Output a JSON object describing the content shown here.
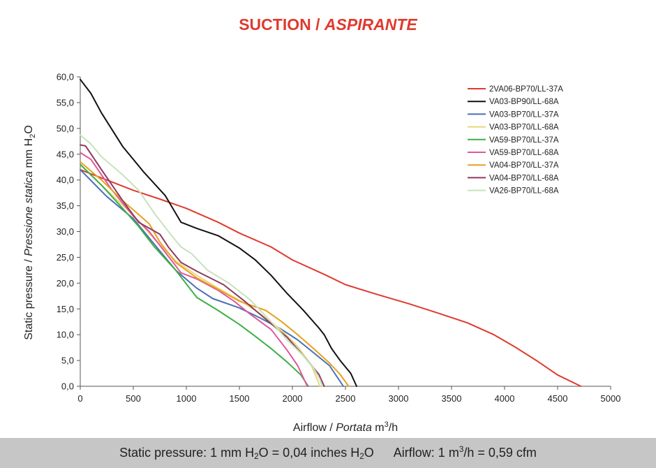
{
  "header": {
    "title_main": "SUCTION /",
    "title_italic": "ASPIRANTE"
  },
  "footer": {
    "pressure_text": "Static pressure: 1 mm H",
    "pressure_sub": "2",
    "pressure_mid": "O = 0,04 inches H",
    "pressure_sub2": "2",
    "pressure_end": "O",
    "airflow_text": "Airflow: 1 m",
    "airflow_sup": "3",
    "airflow_end": "/h = 0,59 cfm"
  },
  "chart_data": {
    "type": "line",
    "title": "SUCTION / ASPIRANTE",
    "xlabel": "Airflow / Portata m³/h",
    "ylabel": "Static pressure / Pressione statica mm H₂O",
    "xlabel_parts": {
      "plain": "Airflow / ",
      "italic": "Portata",
      "unit": " m",
      "unit_sup": "3",
      "unit_end": "/h"
    },
    "ylabel_parts": {
      "plain": "Static pressure / ",
      "italic": "Pressione statica",
      "unit": " mm  H",
      "unit_sub": "2",
      "unit_end": "O"
    },
    "xlim": [
      0,
      5000
    ],
    "ylim": [
      0,
      60
    ],
    "xticks": [
      0,
      500,
      1000,
      1500,
      2000,
      2500,
      3000,
      3500,
      4000,
      4500,
      5000
    ],
    "yticks": [
      0,
      5,
      10,
      15,
      20,
      25,
      30,
      35,
      40,
      45,
      50,
      55,
      60
    ],
    "ytick_labels": [
      "0,0",
      "5,0",
      "10,0",
      "15,0",
      "20,0",
      "25,0",
      "30,0",
      "35,0",
      "40,0",
      "45,0",
      "50,0",
      "55,0",
      "60,0"
    ],
    "grid": false,
    "legend_position": "top-right",
    "series": [
      {
        "name": "2VA06-BP70/LL-37A",
        "color": "#e03a2e",
        "points": [
          [
            0,
            42
          ],
          [
            250,
            40
          ],
          [
            500,
            38
          ],
          [
            750,
            36.3
          ],
          [
            1000,
            34.5
          ],
          [
            1300,
            31.8
          ],
          [
            1500,
            29.7
          ],
          [
            1800,
            27
          ],
          [
            2000,
            24.5
          ],
          [
            2300,
            21.7
          ],
          [
            2500,
            19.7
          ],
          [
            2800,
            17.8
          ],
          [
            3100,
            16
          ],
          [
            3400,
            14
          ],
          [
            3650,
            12.3
          ],
          [
            3900,
            10
          ],
          [
            4100,
            7.6
          ],
          [
            4300,
            5
          ],
          [
            4500,
            2.2
          ],
          [
            4720,
            0
          ]
        ]
      },
      {
        "name": "VA03-BP90/LL-68A",
        "color": "#111111",
        "points": [
          [
            0,
            59.5
          ],
          [
            100,
            56.8
          ],
          [
            200,
            53
          ],
          [
            400,
            46.5
          ],
          [
            500,
            44
          ],
          [
            600,
            41.5
          ],
          [
            800,
            37
          ],
          [
            950,
            31.8
          ],
          [
            1100,
            30.6
          ],
          [
            1300,
            29.2
          ],
          [
            1500,
            26.8
          ],
          [
            1650,
            24.5
          ],
          [
            1800,
            21.5
          ],
          [
            1950,
            18
          ],
          [
            2100,
            14.8
          ],
          [
            2250,
            11.3
          ],
          [
            2300,
            10
          ],
          [
            2370,
            7.3
          ],
          [
            2450,
            5
          ],
          [
            2550,
            2.5
          ],
          [
            2605,
            0
          ]
        ]
      },
      {
        "name": "VA03-BP70/LL-37A",
        "color": "#4a6fb5",
        "points": [
          [
            0,
            42
          ],
          [
            250,
            36.8
          ],
          [
            500,
            32.5
          ],
          [
            700,
            27.5
          ],
          [
            900,
            22.5
          ],
          [
            1100,
            19
          ],
          [
            1250,
            17
          ],
          [
            1500,
            15.2
          ],
          [
            1700,
            13.2
          ],
          [
            1900,
            11
          ],
          [
            2050,
            9
          ],
          [
            2200,
            6.5
          ],
          [
            2350,
            4
          ],
          [
            2480,
            0
          ]
        ]
      },
      {
        "name": "VA03-BP70/LL-68A",
        "color": "#e8d87a",
        "points": [
          [
            0,
            43
          ],
          [
            250,
            38
          ],
          [
            500,
            33.2
          ],
          [
            700,
            28.5
          ],
          [
            900,
            24.3
          ],
          [
            1100,
            21.5
          ],
          [
            1300,
            19
          ],
          [
            1500,
            16.7
          ],
          [
            1700,
            14
          ],
          [
            1900,
            10.8
          ],
          [
            2050,
            7.7
          ],
          [
            2180,
            4
          ],
          [
            2260,
            0
          ]
        ]
      },
      {
        "name": "VA59-BP70/LL-37A",
        "color": "#3cb043",
        "points": [
          [
            0,
            43
          ],
          [
            200,
            39
          ],
          [
            400,
            34.5
          ],
          [
            550,
            31
          ],
          [
            700,
            27
          ],
          [
            900,
            22.5
          ],
          [
            1100,
            17.2
          ],
          [
            1300,
            14.7
          ],
          [
            1500,
            12
          ],
          [
            1650,
            9.7
          ],
          [
            1800,
            7.3
          ],
          [
            1950,
            4.7
          ],
          [
            2080,
            2.2
          ],
          [
            2150,
            0
          ]
        ]
      },
      {
        "name": "VA59-BP70/LL-68A",
        "color": "#e0579a",
        "points": [
          [
            0,
            45.3
          ],
          [
            100,
            44
          ],
          [
            300,
            38
          ],
          [
            500,
            33
          ],
          [
            650,
            30
          ],
          [
            800,
            26
          ],
          [
            950,
            22
          ],
          [
            1100,
            20.8
          ],
          [
            1300,
            18.6
          ],
          [
            1450,
            16.5
          ],
          [
            1600,
            14
          ],
          [
            1800,
            11
          ],
          [
            1950,
            7
          ],
          [
            2050,
            4
          ],
          [
            2140,
            0
          ]
        ]
      },
      {
        "name": "VA04-BP70/LL-37A",
        "color": "#e8a020",
        "points": [
          [
            0,
            43.5
          ],
          [
            200,
            40
          ],
          [
            400,
            36
          ],
          [
            650,
            31.5
          ],
          [
            750,
            28
          ],
          [
            900,
            24
          ],
          [
            1100,
            21
          ],
          [
            1300,
            18.8
          ],
          [
            1500,
            16.5
          ],
          [
            1750,
            14.7
          ],
          [
            1900,
            12.5
          ],
          [
            2050,
            10
          ],
          [
            2200,
            7.3
          ],
          [
            2350,
            4.5
          ],
          [
            2450,
            2.3
          ],
          [
            2530,
            0
          ]
        ]
      },
      {
        "name": "VA04-BP70/LL-68A",
        "color": "#8e3a5e",
        "points": [
          [
            0,
            46.8
          ],
          [
            50,
            46.6
          ],
          [
            200,
            42
          ],
          [
            400,
            36
          ],
          [
            550,
            31.8
          ],
          [
            750,
            29.5
          ],
          [
            830,
            27
          ],
          [
            950,
            24
          ],
          [
            1100,
            22.3
          ],
          [
            1350,
            19.7
          ],
          [
            1550,
            16.5
          ],
          [
            1750,
            13
          ],
          [
            1950,
            9.5
          ],
          [
            2100,
            6
          ],
          [
            2250,
            2.3
          ],
          [
            2300,
            0
          ]
        ]
      },
      {
        "name": "VA26-BP70/LL-68A",
        "color": "#c5e3bb",
        "points": [
          [
            0,
            48.7
          ],
          [
            100,
            47
          ],
          [
            200,
            44.5
          ],
          [
            400,
            41
          ],
          [
            550,
            38
          ],
          [
            700,
            33.5
          ],
          [
            850,
            29.5
          ],
          [
            950,
            27
          ],
          [
            1050,
            25.7
          ],
          [
            1200,
            22.5
          ],
          [
            1400,
            20
          ],
          [
            1600,
            16.8
          ],
          [
            1800,
            12.5
          ],
          [
            1950,
            9
          ],
          [
            2100,
            6
          ],
          [
            2200,
            3.5
          ],
          [
            2260,
            1.3
          ],
          [
            2280,
            0
          ]
        ]
      }
    ]
  }
}
